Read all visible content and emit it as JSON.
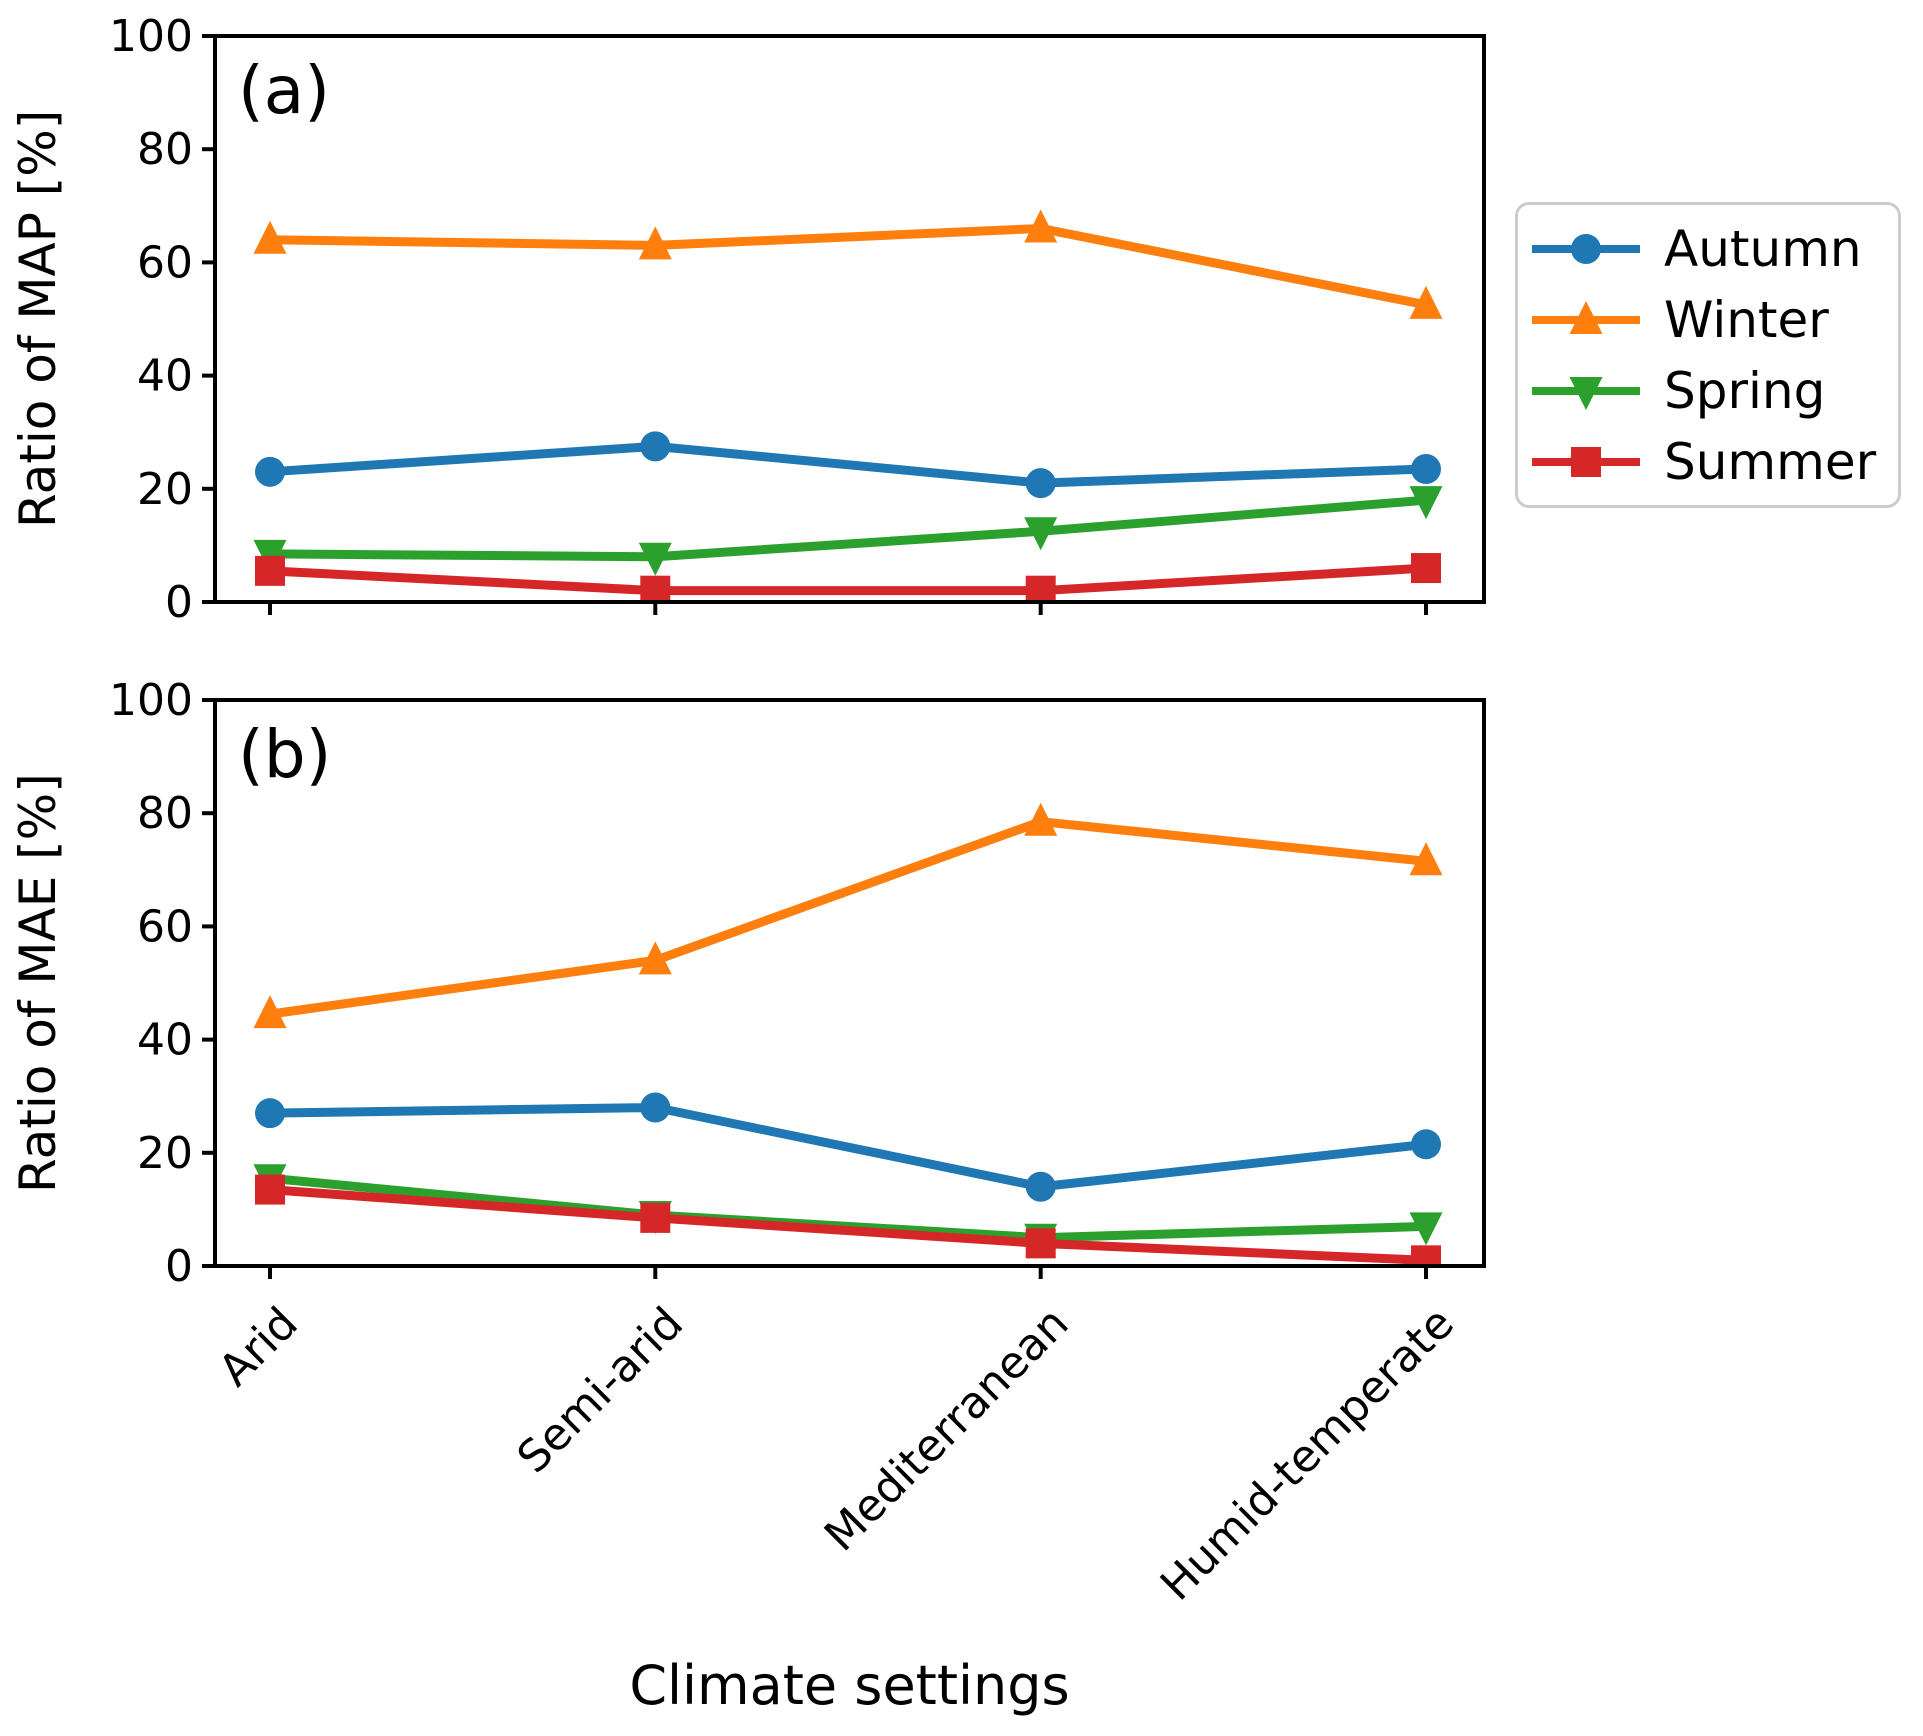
{
  "xlabel": "Climate settings",
  "axis_color": "#000000",
  "background_color": "#ffffff",
  "legend": {
    "position": "outside-right-of-top-panel",
    "border_color": "#cccccc"
  },
  "chart_data": [
    {
      "type": "line",
      "panel_label": "(a)",
      "ylabel": "Ratio of MAP [%]",
      "xlabel": "",
      "categories": [
        "Arid",
        "Semi-arid",
        "Mediterranean",
        "Humid-temperate"
      ],
      "ylim": [
        0,
        100
      ],
      "yticks": [
        "0",
        "20",
        "40",
        "60",
        "80",
        "100"
      ],
      "grid": false,
      "series": [
        {
          "name": "Autumn",
          "color": "#1f77b4",
          "marker": "circle",
          "values": [
            23,
            27.5,
            21,
            23.5
          ]
        },
        {
          "name": "Winter",
          "color": "#ff7f0e",
          "marker": "triangle-up",
          "values": [
            64,
            63,
            66,
            52.5
          ]
        },
        {
          "name": "Spring",
          "color": "#2ca02c",
          "marker": "triangle-down",
          "values": [
            8.5,
            8,
            12.5,
            18
          ]
        },
        {
          "name": "Summer",
          "color": "#d62728",
          "marker": "square",
          "values": [
            5.5,
            2,
            2,
            6
          ]
        }
      ]
    },
    {
      "type": "line",
      "panel_label": "(b)",
      "ylabel": "Ratio of MAE [%]",
      "xlabel": "Climate settings",
      "categories": [
        "Arid",
        "Semi-arid",
        "Mediterranean",
        "Humid-temperate"
      ],
      "ylim": [
        0,
        100
      ],
      "yticks": [
        "0",
        "20",
        "40",
        "60",
        "80",
        "100"
      ],
      "grid": false,
      "series": [
        {
          "name": "Autumn",
          "color": "#1f77b4",
          "marker": "circle",
          "values": [
            27,
            28,
            14,
            21.5
          ]
        },
        {
          "name": "Winter",
          "color": "#ff7f0e",
          "marker": "triangle-up",
          "values": [
            44.5,
            54,
            78.5,
            71.5
          ]
        },
        {
          "name": "Spring",
          "color": "#2ca02c",
          "marker": "triangle-down",
          "values": [
            15.5,
            9,
            5,
            7
          ]
        },
        {
          "name": "Summer",
          "color": "#d62728",
          "marker": "square",
          "values": [
            13.5,
            8.5,
            4,
            1
          ]
        }
      ]
    }
  ]
}
